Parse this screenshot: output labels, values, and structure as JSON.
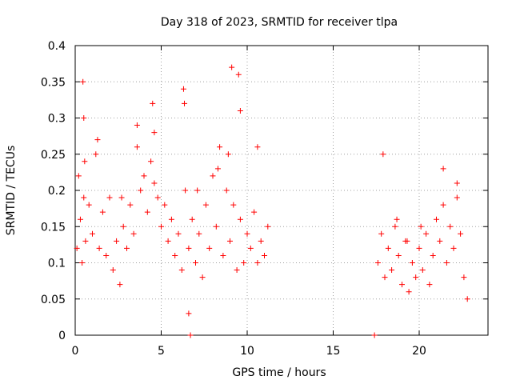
{
  "chart_data": {
    "type": "scatter",
    "title": "Day 318 of 2023, SRMTID for receiver tlpa",
    "xlabel": "GPS time / hours",
    "ylabel": "SRMTID / TECUs",
    "xlim": [
      0,
      24
    ],
    "ylim": [
      0,
      0.4
    ],
    "x_ticks": [
      0,
      5,
      10,
      15,
      20
    ],
    "x_tick_labels": [
      "0",
      "5",
      "10",
      "15",
      "20"
    ],
    "y_ticks": [
      0,
      0.05,
      0.1,
      0.15,
      0.2,
      0.25,
      0.3,
      0.35,
      0.4
    ],
    "y_tick_labels": [
      "0",
      "0.05",
      "0.1",
      "0.15",
      "0.2",
      "0.25",
      "0.3",
      "0.35",
      "0.4"
    ],
    "grid": true,
    "marker": "+",
    "color": "#ff0000",
    "series": [
      {
        "x": [
          0.1,
          0.2,
          0.3,
          0.4,
          0.5,
          0.6,
          0.8,
          1.0,
          1.2,
          1.4,
          1.6,
          1.8,
          2.0,
          2.2,
          2.4,
          2.6,
          2.8,
          3.0,
          3.2,
          3.4,
          3.6,
          3.8,
          4.0,
          4.2,
          4.4,
          4.6,
          4.8,
          5.0,
          5.2,
          5.4,
          5.6,
          5.8,
          6.0,
          6.2,
          6.4,
          6.6,
          6.8,
          7.0,
          7.2,
          7.4,
          7.6,
          7.8,
          8.0,
          8.2,
          8.4,
          8.6,
          8.8,
          9.0,
          9.2,
          9.4,
          9.6,
          9.8,
          10.0,
          10.2,
          10.4,
          10.6,
          10.8,
          11.0,
          11.2,
          0.45,
          0.5,
          0.55,
          6.3,
          6.35,
          9.1,
          9.5,
          9.6,
          4.5,
          4.6,
          3.6,
          2.7,
          1.3,
          7.1,
          8.3,
          8.9,
          10.6,
          6.6,
          6.7,
          17.4,
          17.6,
          17.8,
          18.0,
          18.2,
          18.4,
          18.6,
          18.8,
          19.0,
          19.2,
          19.4,
          19.6,
          19.8,
          20.0,
          20.2,
          20.4,
          20.6,
          20.8,
          21.0,
          21.2,
          21.4,
          21.6,
          21.8,
          22.0,
          22.2,
          22.4,
          22.6,
          22.8,
          17.9,
          21.4,
          22.2,
          18.7,
          20.1,
          19.3
        ],
        "y": [
          0.12,
          0.22,
          0.16,
          0.1,
          0.19,
          0.13,
          0.18,
          0.14,
          0.25,
          0.12,
          0.17,
          0.11,
          0.19,
          0.09,
          0.13,
          0.07,
          0.15,
          0.12,
          0.18,
          0.14,
          0.26,
          0.2,
          0.22,
          0.17,
          0.24,
          0.21,
          0.19,
          0.15,
          0.18,
          0.13,
          0.16,
          0.11,
          0.14,
          0.09,
          0.2,
          0.12,
          0.16,
          0.1,
          0.14,
          0.08,
          0.18,
          0.12,
          0.22,
          0.15,
          0.26,
          0.11,
          0.2,
          0.13,
          0.18,
          0.09,
          0.16,
          0.1,
          0.14,
          0.12,
          0.17,
          0.1,
          0.13,
          0.11,
          0.15,
          0.35,
          0.3,
          0.24,
          0.34,
          0.32,
          0.37,
          0.36,
          0.31,
          0.32,
          0.28,
          0.29,
          0.19,
          0.27,
          0.2,
          0.23,
          0.25,
          0.26,
          0.03,
          0.0,
          0.0,
          0.1,
          0.14,
          0.08,
          0.12,
          0.09,
          0.15,
          0.11,
          0.07,
          0.13,
          0.06,
          0.1,
          0.08,
          0.12,
          0.09,
          0.14,
          0.07,
          0.11,
          0.16,
          0.13,
          0.18,
          0.1,
          0.15,
          0.12,
          0.19,
          0.14,
          0.08,
          0.05,
          0.25,
          0.23,
          0.21,
          0.16,
          0.15,
          0.13
        ]
      }
    ]
  }
}
